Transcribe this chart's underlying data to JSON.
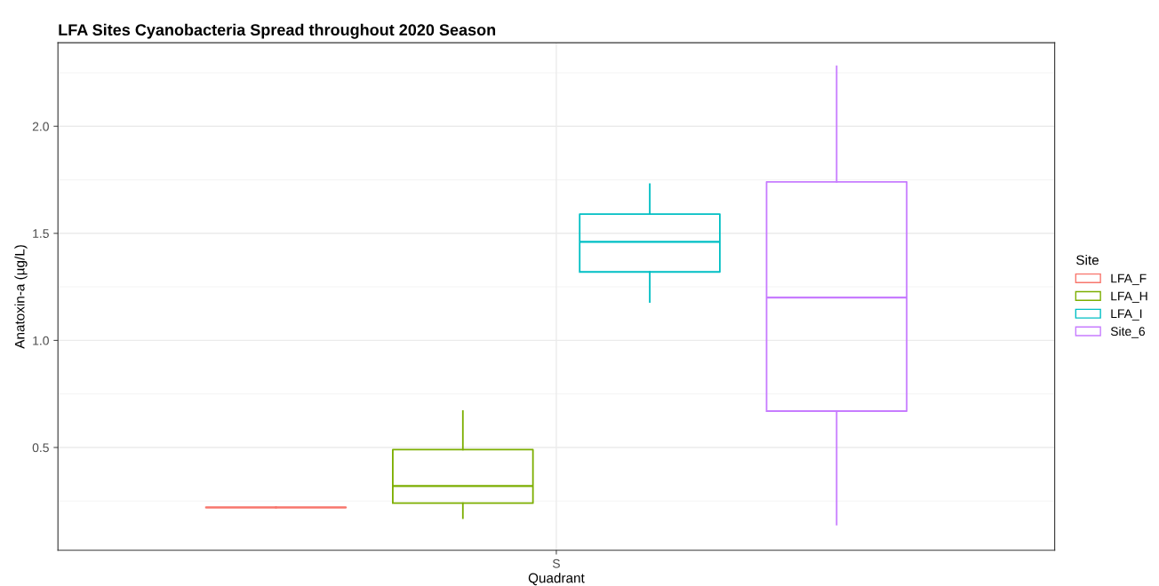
{
  "chart_data": {
    "type": "box",
    "title": "LFA Sites Cyanobacteria Spread throughout 2020 Season",
    "xlabel": "Quadrant",
    "ylabel": "Anatoxin-a (µg/L)",
    "legend_title": "Site",
    "legend": "right",
    "grid": true,
    "categories": [
      "S"
    ],
    "ylim": [
      0.02,
      2.39
    ],
    "yticks": [
      0.5,
      {
        "value": 1,
        "label": "1.0"
      },
      1.5,
      {
        "value": 2,
        "label": "2.0"
      }
    ],
    "series": [
      {
        "name": "LFA_F",
        "color": "#f8766d",
        "boxes": [
          {
            "low": 0.22,
            "q1": 0.22,
            "median": 0.22,
            "q3": 0.22,
            "high": 0.22
          }
        ]
      },
      {
        "name": "LFA_H",
        "color": "#7cae00",
        "boxes": [
          {
            "low": 0.17,
            "q1": 0.24,
            "median": 0.32,
            "q3": 0.49,
            "high": 0.67
          }
        ]
      },
      {
        "name": "LFA_I",
        "color": "#00bfc4",
        "boxes": [
          {
            "low": 1.18,
            "q1": 1.32,
            "median": 1.46,
            "q3": 1.59,
            "high": 1.73
          }
        ]
      },
      {
        "name": "Site_6",
        "color": "#c77cff",
        "boxes": [
          {
            "low": 0.14,
            "q1": 0.67,
            "median": 1.2,
            "q3": 1.74,
            "high": 2.28
          }
        ]
      }
    ]
  }
}
